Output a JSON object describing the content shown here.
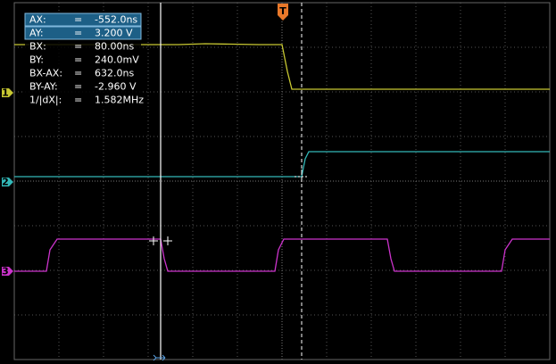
{
  "readout": {
    "separator": "=",
    "rows": [
      {
        "label": "AX:",
        "value": "-552.0ns",
        "selected": true
      },
      {
        "label": "AY:",
        "value": "3.200 V",
        "selected": true
      },
      {
        "label": "BX:",
        "value": "80.00ns",
        "selected": false
      },
      {
        "label": "BY:",
        "value": "240.0mV",
        "selected": false
      },
      {
        "label": "BX-AX:",
        "value": "632.0ns",
        "selected": false
      },
      {
        "label": "BY-AY:",
        "value": "-2.960 V",
        "selected": false
      },
      {
        "label": "1/|dX|:",
        "value": "1.582MHz",
        "selected": false
      }
    ]
  },
  "channels": [
    {
      "label": "1",
      "color": "#c8c832"
    },
    {
      "label": "2",
      "color": "#33b8b8"
    },
    {
      "label": "3",
      "color": "#cc33cc"
    }
  ],
  "trigger": {
    "label": "T",
    "color": "#e8782a"
  }
}
